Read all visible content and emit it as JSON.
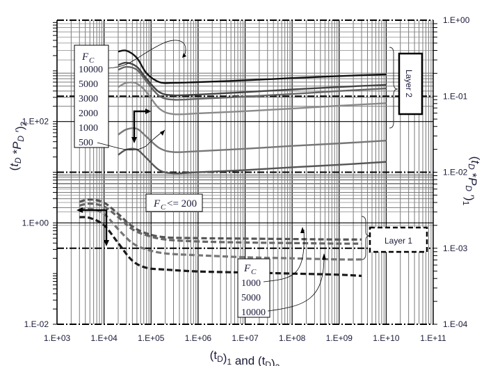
{
  "chart_data": {
    "type": "line",
    "title": "",
    "xlabel": "(t_D)_1 and (t_D)_2",
    "xlabel_parts": {
      "open": "(t",
      "sub1": "D",
      "mid": ")",
      "sub2": "1",
      "and": " and ",
      "open2": "(t",
      "sub3": "D",
      "mid2": ")",
      "sub4": "2"
    },
    "ylabel_left": "(t_D *P_D')_2",
    "ylabel_right": "(t_D *P_D')_1",
    "xscale": "log",
    "yscale_left": "log",
    "yscale_right": "log",
    "xlim": [
      1000,
      100000000000
    ],
    "ylim_left": [
      0.01,
      10000
    ],
    "ylim_right": [
      0.0001,
      1
    ],
    "x_tick_labels": [
      "1.E+03",
      "1.E+04",
      "1.E+05",
      "1.E+06",
      "1.E+07",
      "1.E+08",
      "1.E+09",
      "1.E+10",
      "1.E+11"
    ],
    "y_left_tick_labels": [
      {
        "label": "1.E+02",
        "value": 100
      },
      {
        "label": "1.E+00",
        "value": 1
      },
      {
        "label": "1.E-02",
        "value": 0.01
      }
    ],
    "y_right_tick_labels": [
      {
        "label": "1.E+00",
        "value": 1
      },
      {
        "label": "1.E-01",
        "value": 0.1
      },
      {
        "label": "1.E-02",
        "value": 0.01
      },
      {
        "label": "1.E-03",
        "value": 0.001
      },
      {
        "label": "1.E-04",
        "value": 0.0001
      }
    ],
    "grid": true,
    "layer2": {
      "axis": "left",
      "label": "Layer 2",
      "legend_title": "F_C",
      "legend_entries": [
        "10000",
        "5000",
        "3000",
        "2000",
        "1000",
        "500"
      ],
      "series": [
        {
          "name": "F_C=10000",
          "color": "#111111",
          "style": "solid",
          "x": [
            20000,
            30000,
            50000,
            80000,
            150000,
            300000,
            1000000,
            10000000,
            100000000,
            1000000000,
            10000000000
          ],
          "y": [
            2400,
            2500,
            1800,
            900,
            600,
            580,
            600,
            650,
            720,
            790,
            850
          ]
        },
        {
          "name": "F_C=5000",
          "color": "#444444",
          "style": "solid",
          "x": [
            20000,
            30000,
            50000,
            80000,
            150000,
            300000,
            1000000,
            10000000,
            100000000,
            1000000000,
            10000000000
          ],
          "y": [
            1300,
            1450,
            1200,
            700,
            380,
            330,
            340,
            380,
            430,
            480,
            530
          ]
        },
        {
          "name": "F_C=3000",
          "color": "#666666",
          "style": "solid",
          "x": [
            20000,
            30000,
            50000,
            80000,
            150000,
            300000,
            1000000,
            10000000,
            100000000,
            1000000000,
            10000000000
          ],
          "y": [
            1050,
            1200,
            1050,
            620,
            320,
            270,
            280,
            310,
            350,
            400,
            450
          ]
        },
        {
          "name": "F_C=2000",
          "color": "#8a8a8a",
          "style": "solid",
          "x": [
            20000,
            30000,
            50000,
            80000,
            150000,
            300000,
            1000000,
            10000000,
            100000000,
            1000000000,
            10000000000
          ],
          "y": [
            480,
            580,
            560,
            380,
            180,
            140,
            145,
            160,
            180,
            205,
            230
          ]
        },
        {
          "name": "F_C=1000",
          "color": "#777777",
          "style": "solid",
          "x": [
            20000,
            30000,
            50000,
            80000,
            150000,
            300000,
            1000000,
            10000000,
            100000000,
            1000000000,
            10000000000
          ],
          "y": [
            55,
            70,
            72,
            50,
            30,
            25,
            26,
            29,
            33,
            37,
            42
          ]
        },
        {
          "name": "F_C=500",
          "color": "#555555",
          "style": "solid",
          "x": [
            20000,
            30000,
            50000,
            80000,
            150000,
            300000,
            1000000,
            10000000,
            100000000,
            1000000000,
            10000000000
          ],
          "y": [
            22,
            28,
            28,
            19,
            11,
            9.5,
            10,
            11,
            12.5,
            14,
            16
          ]
        }
      ]
    },
    "layer1": {
      "axis": "left",
      "label": "Layer 1",
      "annotation": "F_C <= 200",
      "legend_title": "F_C",
      "legend_entries": [
        "1000",
        "5000",
        "10000"
      ],
      "series": [
        {
          "name": "F_C<=200 (upper)",
          "color": "#555555",
          "style": "dashed",
          "x": [
            3000,
            5000,
            10000,
            20000,
            40000,
            80000,
            200000,
            1000000,
            10000000,
            100000000,
            1000000000,
            3000000000
          ],
          "y": [
            2.6,
            2.9,
            2.5,
            1.5,
            0.85,
            0.62,
            0.52,
            0.5,
            0.49,
            0.48,
            0.47,
            0.47
          ]
        },
        {
          "name": "F_C=1000",
          "color": "#666666",
          "style": "dashed",
          "x": [
            3000,
            5000,
            10000,
            20000,
            40000,
            80000,
            200000,
            1000000,
            10000000,
            100000000,
            1000000000,
            3000000000
          ],
          "y": [
            2.2,
            2.4,
            2.1,
            1.3,
            0.75,
            0.57,
            0.47,
            0.43,
            0.41,
            0.4,
            0.39,
            0.39
          ]
        },
        {
          "name": "F_C=5000",
          "color": "#777777",
          "style": "dashed",
          "x": [
            3000,
            5000,
            10000,
            20000,
            40000,
            80000,
            200000,
            1000000,
            10000000,
            100000000,
            1000000000,
            3000000000
          ],
          "y": [
            1.8,
            1.9,
            1.5,
            0.75,
            0.4,
            0.3,
            0.25,
            0.23,
            0.21,
            0.2,
            0.19,
            0.19
          ]
        },
        {
          "name": "F_C=10000",
          "color": "#1a1a1a",
          "style": "dashed",
          "x": [
            3000,
            5000,
            10000,
            20000,
            40000,
            80000,
            200000,
            1000000,
            10000000,
            100000000,
            1000000000,
            3000000000
          ],
          "y": [
            1.3,
            1.25,
            0.9,
            0.4,
            0.18,
            0.13,
            0.12,
            0.11,
            0.105,
            0.1,
            0.095,
            0.09
          ]
        }
      ]
    },
    "reference_lines_right_axis": [
      1,
      0.1,
      0.01,
      0.001,
      0.0001
    ],
    "annotations": [
      {
        "type": "arrow-pair",
        "near": "layer2",
        "directions": [
          "right",
          "down"
        ]
      },
      {
        "type": "arrow-pair",
        "near": "layer1",
        "directions": [
          "left",
          "down"
        ]
      },
      {
        "type": "brace",
        "target": "layer2"
      },
      {
        "type": "brace",
        "target": "layer1"
      }
    ]
  },
  "labels": {
    "layer2_box": "Layer 2",
    "layer1_box": "Layer 1",
    "fc_leq_200": "<= 200",
    "fc_symbol": "F",
    "fc_sub": "C"
  }
}
